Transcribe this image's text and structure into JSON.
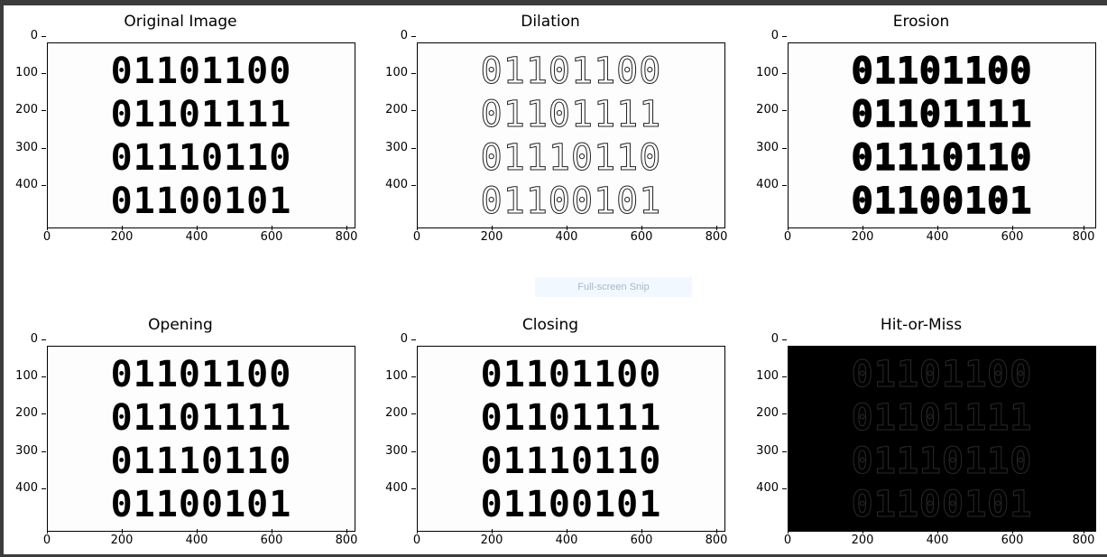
{
  "panels": [
    {
      "title": "Original Image",
      "lines": [
        "01101100",
        "01101111",
        "01110110",
        "01100101"
      ]
    },
    {
      "title": "Dilation",
      "lines": [
        "01101100",
        "01101111",
        "01110110",
        "01100101"
      ]
    },
    {
      "title": "Erosion",
      "lines": [
        "01101100",
        "01101111",
        "01110110",
        "01100101"
      ]
    },
    {
      "title": "Opening",
      "lines": [
        "01101100",
        "01101111",
        "01110110",
        "01100101"
      ]
    },
    {
      "title": "Closing",
      "lines": [
        "01101100",
        "01101111",
        "01110110",
        "01100101"
      ]
    },
    {
      "title": "Hit-or-Miss",
      "lines": [
        "01101100",
        "01101111",
        "01110110",
        "01100101"
      ]
    }
  ],
  "y_ticks": [
    "0",
    "100",
    "200",
    "300",
    "400"
  ],
  "x_ticks": [
    "0",
    "200",
    "400",
    "600",
    "800"
  ],
  "snip_label": "Full-screen Snip"
}
